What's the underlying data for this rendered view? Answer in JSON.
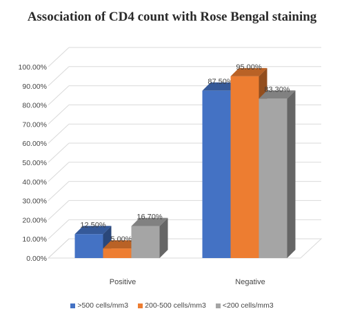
{
  "chart_data": {
    "type": "bar",
    "title": "Association  of CD4 count with Rose Bengal staining",
    "categories": [
      "Positive",
      "Negative"
    ],
    "series": [
      {
        "name": ">500 cells/mm3",
        "values": [
          12.5,
          87.5
        ],
        "labels": [
          "12.50%",
          "87.50%"
        ],
        "color": "#4472C4"
      },
      {
        "name": "200-500 cells/mm3",
        "values": [
          5.0,
          95.0
        ],
        "labels": [
          "5.00%",
          "95.00%"
        ],
        "color": "#ED7D31"
      },
      {
        "name": "<200 cells/mm3",
        "values": [
          16.7,
          83.3
        ],
        "labels": [
          "16.70%",
          "83.30%"
        ],
        "color": "#A5A5A5"
      }
    ],
    "yticks": [
      "0.00%",
      "10.00%",
      "20.00%",
      "30.00%",
      "40.00%",
      "50.00%",
      "60.00%",
      "70.00%",
      "80.00%",
      "90.00%",
      "100.00%"
    ],
    "ylim": [
      0,
      100
    ],
    "grid": true,
    "style": "3d-clustered-column",
    "legend_position": "bottom"
  }
}
